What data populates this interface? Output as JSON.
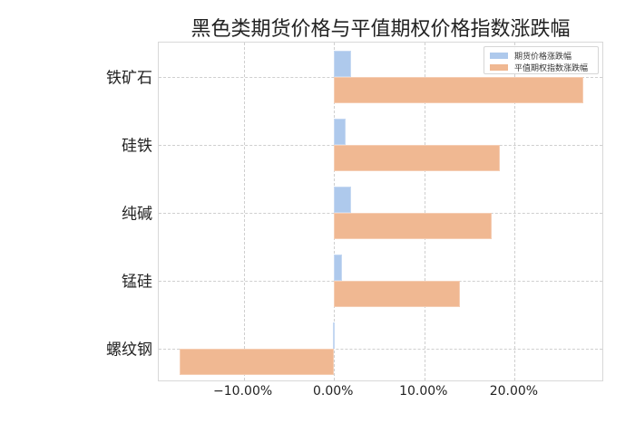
{
  "chart_data": {
    "type": "bar",
    "orientation": "horizontal",
    "title": "黑色类期货价格与平值期权价格指数涨跌幅",
    "xlabel": "",
    "ylabel": "",
    "categories": [
      "铁矿石",
      "硅铁",
      "纯碱",
      "锰硅",
      "螺纹钢"
    ],
    "series": [
      {
        "name": "期货价格涨跌幅",
        "color": "#aec9ec",
        "values": [
          1.9,
          1.3,
          1.9,
          0.9,
          -0.1
        ]
      },
      {
        "name": "平值期权指数涨跌幅",
        "color": "#f0b892",
        "values": [
          27.6,
          18.4,
          17.5,
          13.9,
          -17.1
        ]
      }
    ],
    "value_unit": "%",
    "xlim": [
      -19.4,
      29.9
    ],
    "xticks": [
      -10,
      0,
      10,
      20
    ],
    "xtick_labels": [
      "−10.00%",
      "0.00%",
      "10.00%",
      "20.00%"
    ],
    "grid": true,
    "legend_position": "upper right"
  },
  "title": "黑色类期货价格与平值期权价格指数涨跌幅",
  "legend": [
    {
      "label": "期货价格涨跌幅",
      "color": "#aec9ec"
    },
    {
      "label": "平值期权指数涨跌幅",
      "color": "#f0b892"
    }
  ],
  "yaxis": {
    "labels": [
      "铁矿石",
      "硅铁",
      "纯碱",
      "锰硅",
      "螺纹钢"
    ]
  },
  "xaxis": {
    "tick_labels": [
      "−10.00%",
      "0.00%",
      "10.00%",
      "20.00%"
    ]
  }
}
